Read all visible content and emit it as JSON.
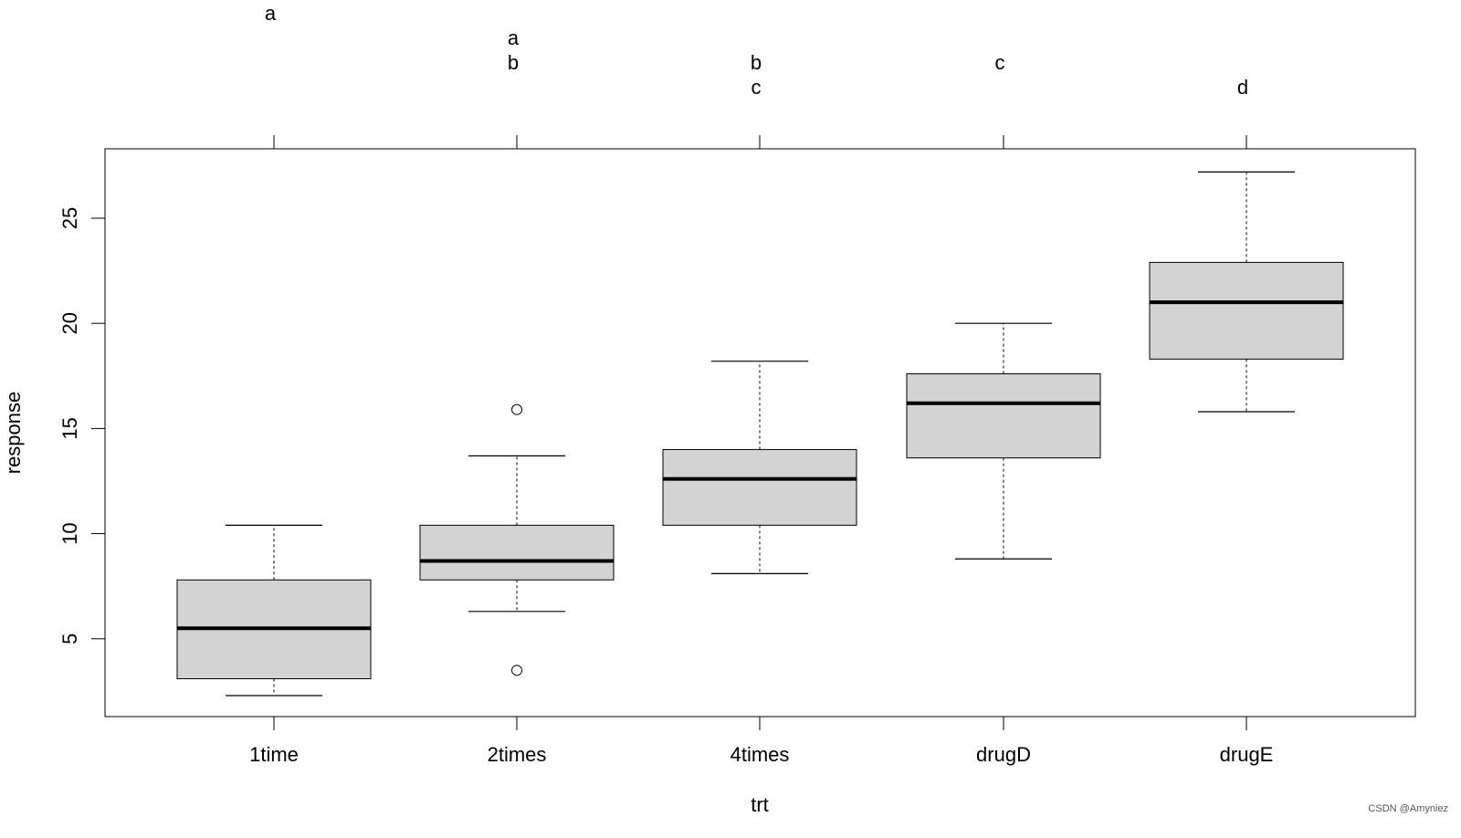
{
  "chart_data": {
    "type": "boxplot",
    "xlabel": "trt",
    "ylabel": "response",
    "ylim": [
      1.3,
      28.3
    ],
    "yticks": [
      5,
      10,
      15,
      20,
      25
    ],
    "categories": [
      "1time",
      "2times",
      "4times",
      "drugD",
      "drugE"
    ],
    "boxes": [
      {
        "category": "1time",
        "whisker_low": 2.3,
        "q1": 3.1,
        "median": 5.5,
        "q3": 7.8,
        "whisker_high": 10.4,
        "outliers": []
      },
      {
        "category": "2times",
        "whisker_low": 6.3,
        "q1": 7.8,
        "median": 8.7,
        "q3": 10.4,
        "whisker_high": 13.7,
        "outliers": [
          15.9,
          3.5
        ]
      },
      {
        "category": "4times",
        "whisker_low": 8.1,
        "q1": 10.4,
        "median": 12.6,
        "q3": 14.0,
        "whisker_high": 18.2,
        "outliers": []
      },
      {
        "category": "drugD",
        "whisker_low": 8.8,
        "q1": 13.6,
        "median": 16.2,
        "q3": 17.6,
        "whisker_high": 20.0,
        "outliers": []
      },
      {
        "category": "drugE",
        "whisker_low": 15.8,
        "q1": 18.3,
        "median": 21.0,
        "q3": 22.9,
        "whisker_high": 27.2,
        "outliers": []
      }
    ],
    "group_letters": [
      {
        "category": "1time",
        "letters": [
          "a"
        ]
      },
      {
        "category": "2times",
        "letters": [
          "a",
          "b"
        ]
      },
      {
        "category": "4times",
        "letters": [
          "b",
          "c"
        ]
      },
      {
        "category": "drugD",
        "letters": [
          "c"
        ]
      },
      {
        "category": "drugE",
        "letters": [
          "d"
        ]
      }
    ],
    "box_fill": "#d3d3d3",
    "grid": false,
    "legend": "none"
  },
  "watermark": "CSDN @Amyniez"
}
